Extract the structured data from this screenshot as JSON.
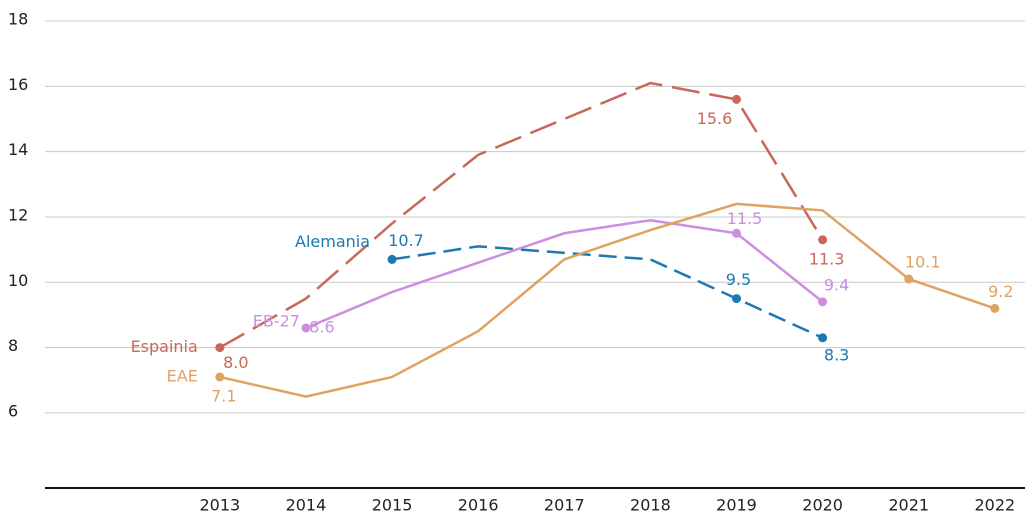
{
  "chart_data": {
    "type": "line",
    "x": [
      2013,
      2014,
      2015,
      2016,
      2017,
      2018,
      2019,
      2020,
      2021,
      2022
    ],
    "xlim": [
      2010.97,
      2022.35
    ],
    "ylim": [
      3.7,
      18
    ],
    "yticks": [
      6,
      8,
      10,
      12,
      14,
      16,
      18
    ],
    "grid": true,
    "series": [
      {
        "name": "Espainia",
        "color": "#c9685a",
        "line_style": "dashed",
        "values": [
          8.0,
          9.5,
          11.8,
          13.9,
          15.0,
          16.1,
          15.6,
          11.3,
          null,
          null
        ],
        "value_labels": [
          "8.0",
          null,
          null,
          null,
          null,
          null,
          "15.6",
          "11.3",
          null,
          null
        ]
      },
      {
        "name": "Alemania",
        "color": "#1b7ab3",
        "line_style": "dashed",
        "values": [
          null,
          null,
          10.7,
          11.1,
          10.9,
          10.7,
          9.5,
          8.3,
          null,
          null
        ],
        "value_labels": [
          null,
          null,
          "10.7",
          null,
          null,
          null,
          "9.5",
          "8.3",
          null,
          null
        ]
      },
      {
        "name": "EB-27",
        "color": "#cc8ee0",
        "line_style": "solid",
        "values": [
          null,
          8.6,
          9.7,
          10.6,
          11.5,
          11.9,
          11.5,
          9.4,
          null,
          null
        ],
        "value_labels": [
          null,
          "8.6",
          null,
          null,
          null,
          null,
          "11.5",
          "9.4",
          null,
          null
        ]
      },
      {
        "name": "EAE",
        "color": "#e0a262",
        "line_style": "solid",
        "values": [
          7.1,
          6.5,
          7.1,
          8.5,
          10.7,
          11.6,
          12.4,
          12.2,
          10.1,
          9.2
        ],
        "value_labels": [
          "7.1",
          null,
          null,
          null,
          null,
          null,
          null,
          null,
          "10.1",
          "9.2"
        ]
      }
    ]
  }
}
